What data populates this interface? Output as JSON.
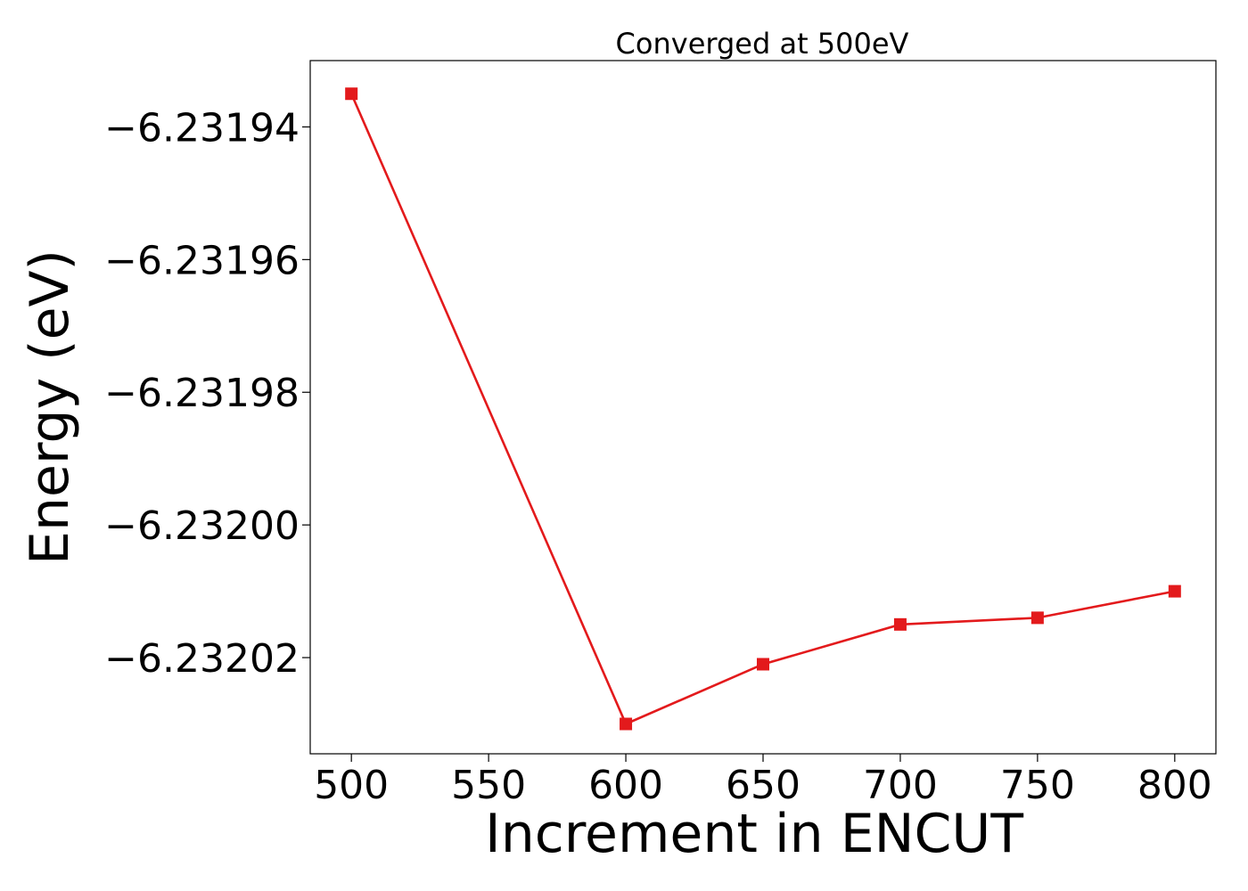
{
  "chart_data": {
    "type": "line",
    "title": "Converged at 500eV",
    "xlabel": "Increment in ENCUT",
    "ylabel": "Energy (eV)",
    "x": [
      500,
      600,
      650,
      700,
      750,
      800
    ],
    "series": [
      {
        "values": [
          -6.231935,
          -6.23203,
          -6.232021,
          -6.232015,
          -6.232014,
          -6.23201
        ],
        "color": "#e31a1c",
        "marker": "square"
      }
    ],
    "x_ticks": [
      500,
      550,
      600,
      650,
      700,
      750,
      800
    ],
    "x_tick_labels": [
      "500",
      "550",
      "600",
      "650",
      "700",
      "750",
      "800"
    ],
    "y_ticks": [
      -6.23194,
      -6.23196,
      -6.23198,
      -6.232,
      -6.23202
    ],
    "y_tick_labels": [
      "−6.23194",
      "−6.23196",
      "−6.23198",
      "−6.23200",
      "−6.23202"
    ],
    "xlim": [
      485,
      815
    ],
    "ylim": [
      -6.2320345,
      -6.23193
    ],
    "grid": false,
    "legend": "none"
  }
}
